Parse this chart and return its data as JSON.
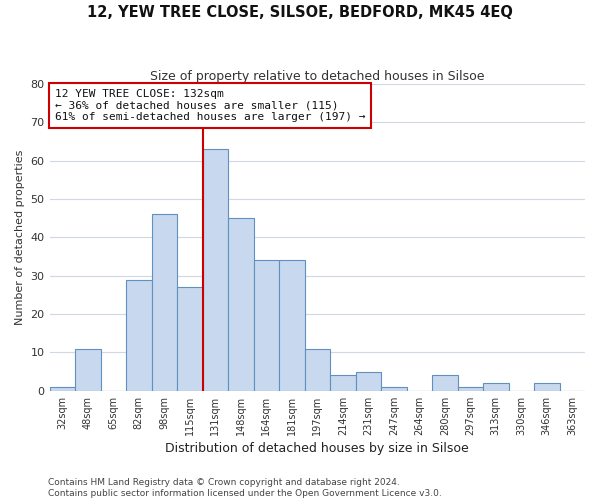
{
  "title": "12, YEW TREE CLOSE, SILSOE, BEDFORD, MK45 4EQ",
  "subtitle": "Size of property relative to detached houses in Silsoe",
  "xlabel": "Distribution of detached houses by size in Silsoe",
  "ylabel": "Number of detached properties",
  "bin_labels": [
    "32sqm",
    "48sqm",
    "65sqm",
    "82sqm",
    "98sqm",
    "115sqm",
    "131sqm",
    "148sqm",
    "164sqm",
    "181sqm",
    "197sqm",
    "214sqm",
    "231sqm",
    "247sqm",
    "264sqm",
    "280sqm",
    "297sqm",
    "313sqm",
    "330sqm",
    "346sqm",
    "363sqm"
  ],
  "bar_values": [
    1,
    11,
    0,
    29,
    46,
    27,
    63,
    45,
    34,
    34,
    11,
    4,
    5,
    1,
    0,
    4,
    1,
    2,
    0,
    2,
    0
  ],
  "bar_color": "#c8d8ee",
  "bar_edge_color": "#6090c0",
  "ylim": [
    0,
    80
  ],
  "yticks": [
    0,
    10,
    20,
    30,
    40,
    50,
    60,
    70,
    80
  ],
  "vline_x": 6,
  "vline_color": "#cc0000",
  "annotation_title": "12 YEW TREE CLOSE: 132sqm",
  "annotation_line1": "← 36% of detached houses are smaller (115)",
  "annotation_line2": "61% of semi-detached houses are larger (197) →",
  "annotation_box_color": "#ffffff",
  "annotation_box_edge": "#cc0000",
  "bg_color": "#ffffff",
  "grid_color": "#d0d8e8",
  "footer1": "Contains HM Land Registry data © Crown copyright and database right 2024.",
  "footer2": "Contains public sector information licensed under the Open Government Licence v3.0."
}
